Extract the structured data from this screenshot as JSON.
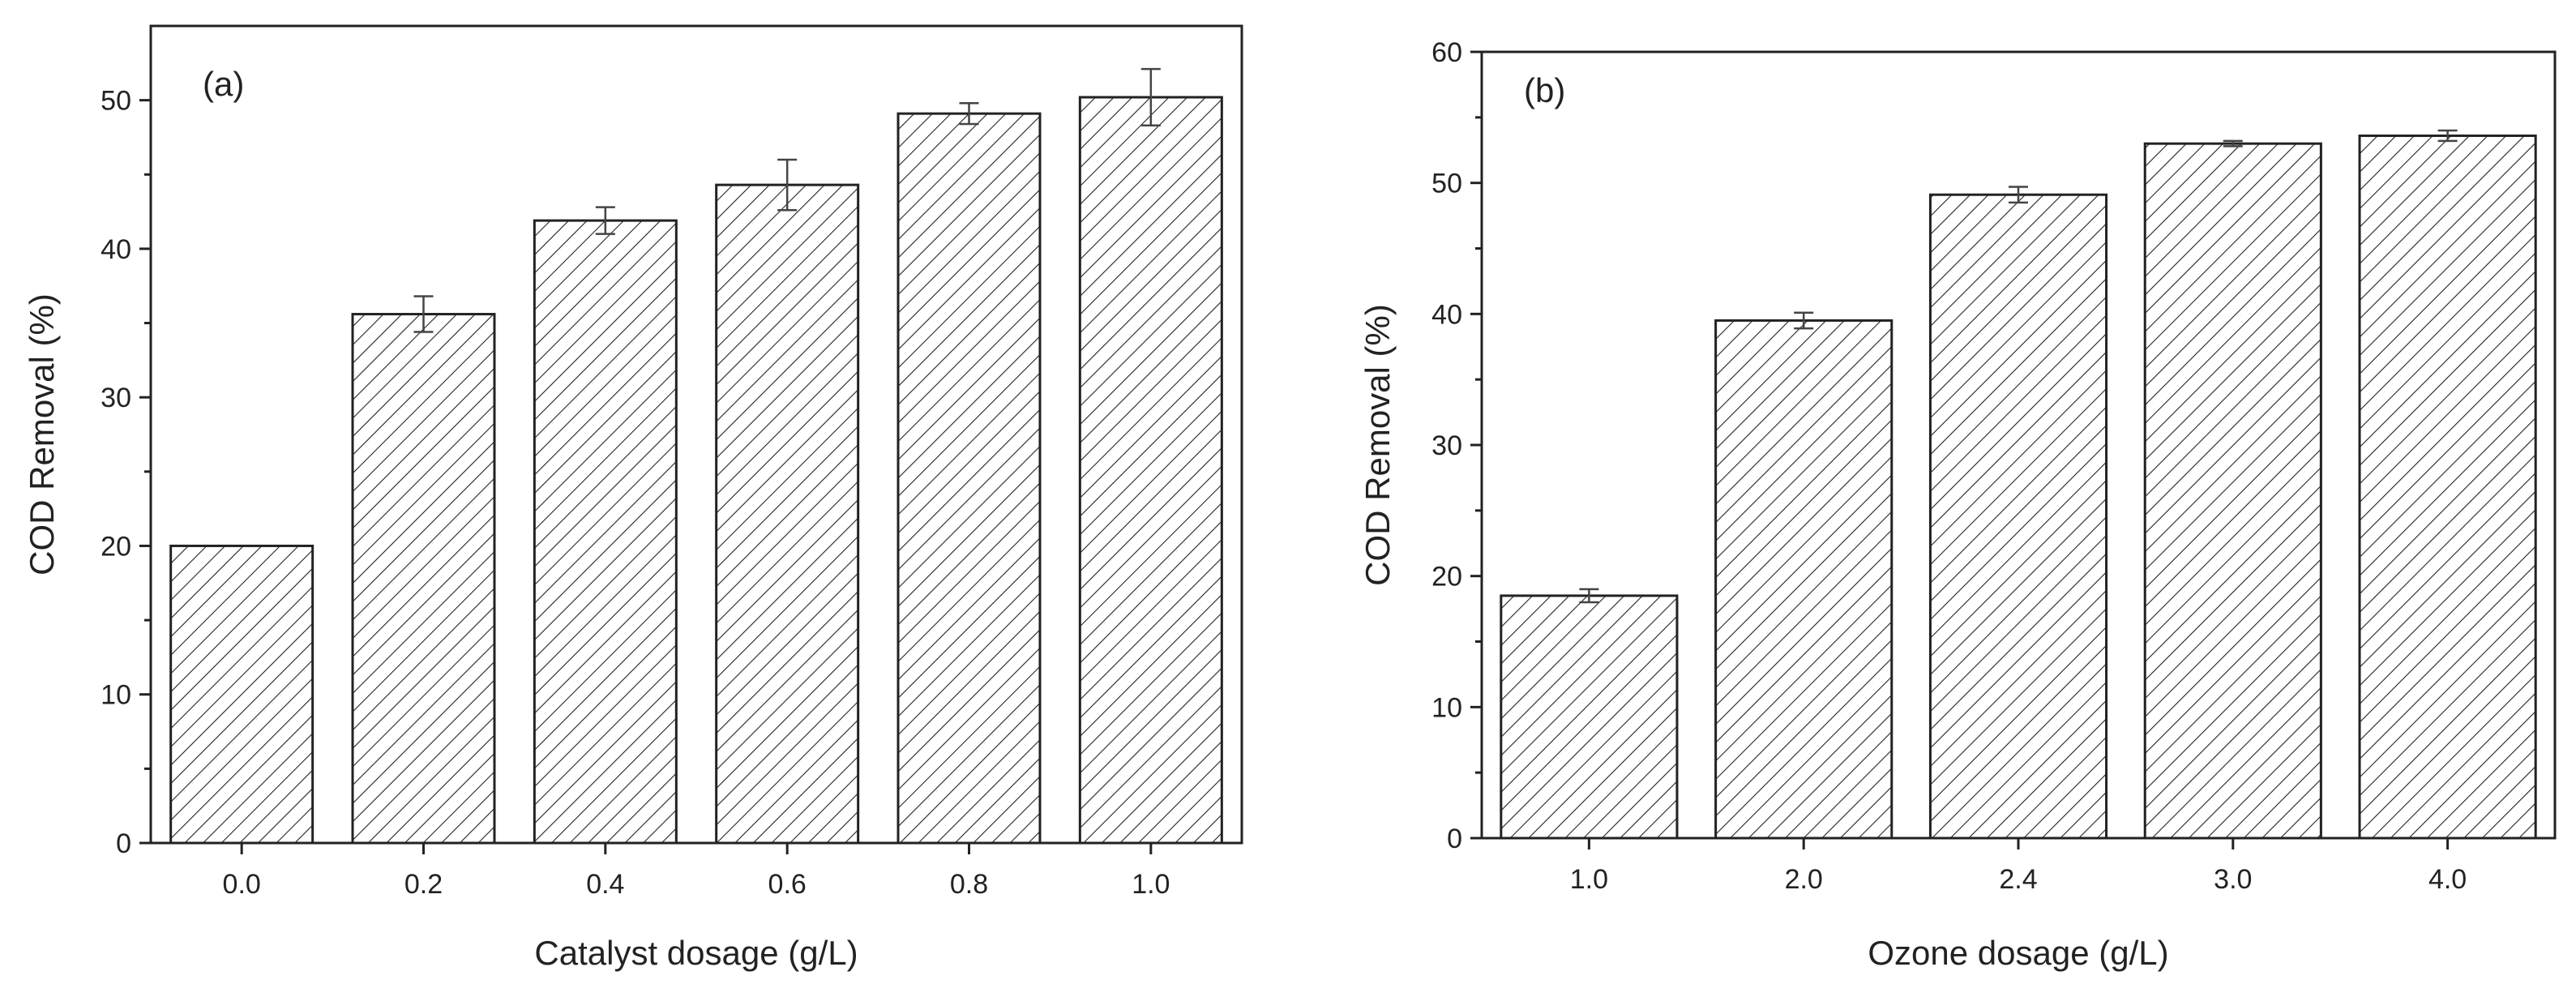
{
  "chart_data": [
    {
      "type": "bar",
      "panel_label": "(a)",
      "categories": [
        "0.0",
        "0.2",
        "0.4",
        "0.6",
        "0.8",
        "1.0"
      ],
      "values": [
        20.0,
        35.6,
        41.9,
        44.3,
        49.1,
        50.2
      ],
      "errors": [
        0.0,
        1.2,
        0.9,
        1.7,
        0.7,
        1.9
      ],
      "xlabel": "Catalyst dosage (g/L)",
      "ylabel": "COD Removal (%)",
      "ylim": [
        0,
        55
      ],
      "yticks": [
        0,
        10,
        20,
        30,
        40,
        50
      ],
      "bar_fill": "hatched",
      "color": "#222222"
    },
    {
      "type": "bar",
      "panel_label": "(b)",
      "categories": [
        "1.0",
        "2.0",
        "2.4",
        "3.0",
        "4.0"
      ],
      "values": [
        18.5,
        39.5,
        49.1,
        53.0,
        53.6
      ],
      "errors": [
        0.5,
        0.6,
        0.6,
        0.2,
        0.4
      ],
      "xlabel": "Ozone dosage (g/L)",
      "ylabel": "COD Removal (%)",
      "ylim": [
        0,
        60
      ],
      "yticks": [
        0,
        10,
        20,
        30,
        40,
        50,
        60
      ],
      "bar_fill": "hatched",
      "color": "#222222"
    }
  ]
}
